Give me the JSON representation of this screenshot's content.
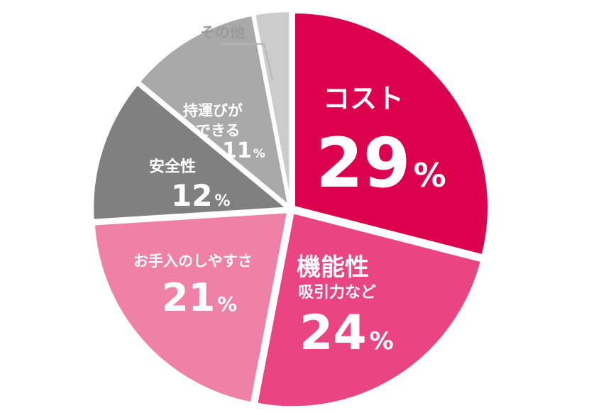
{
  "chart_data": {
    "type": "pie",
    "title": "",
    "slices": [
      {
        "name": "コスト",
        "sub": "",
        "value": 29,
        "label": "29",
        "color": "#dc004c",
        "text_color": "#ffffff"
      },
      {
        "name": "機能性",
        "sub": "吸引力など",
        "value": 24,
        "label": "24",
        "color": "#ea4482",
        "text_color": "#ffffff"
      },
      {
        "name": "お手入のしやすさ",
        "sub": "",
        "value": 21,
        "label": "21",
        "color": "#ef80a6",
        "text_color": "#ffffff"
      },
      {
        "name": "安全性",
        "sub": "",
        "value": 12,
        "label": "12",
        "color": "#808080",
        "text_color": "#ffffff"
      },
      {
        "name": "持運びが",
        "sub": "できる",
        "value": 11,
        "label": "11",
        "color": "#a9a9a9",
        "text_color": "#ffffff"
      },
      {
        "name": "その他",
        "sub": "",
        "value": 3,
        "label": "",
        "color": "#cccccc",
        "text_color": "#9a9a9a"
      }
    ],
    "percent_sign": "%",
    "legend": "none"
  }
}
